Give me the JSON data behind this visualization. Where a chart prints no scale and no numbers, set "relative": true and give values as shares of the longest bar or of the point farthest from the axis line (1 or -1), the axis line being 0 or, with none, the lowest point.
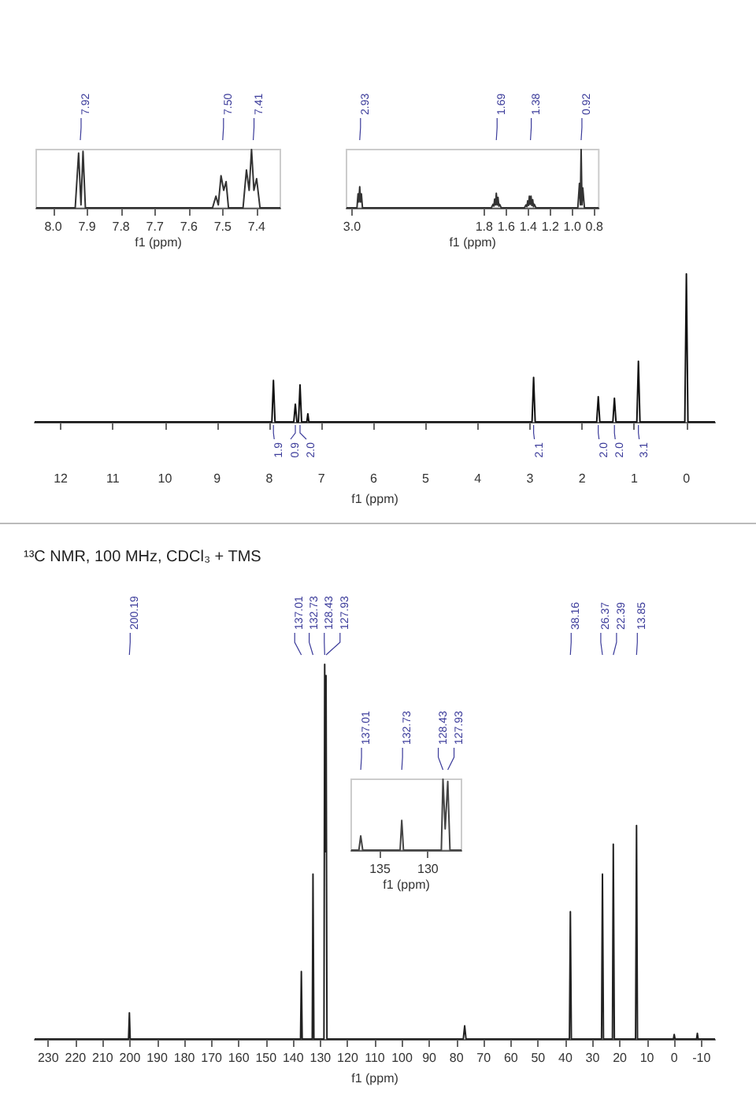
{
  "chart_data": [
    {
      "type": "line",
      "relative": true,
      "marker": "none",
      "color": "#333333",
      "xlabel": "f1 (ppm)",
      "xlim": [
        8.05,
        7.33
      ],
      "xticks": [
        {
          "value": 8,
          "label": "8.0"
        },
        {
          "value": 7.9,
          "label": "7.9"
        },
        {
          "value": 7.8,
          "label": "7.8"
        },
        {
          "value": 7.7,
          "label": "7.7"
        },
        {
          "value": 7.6,
          "label": "7.6"
        },
        {
          "value": 7.5,
          "label": "7.5"
        },
        {
          "value": 7.4,
          "label": "7.4"
        }
      ],
      "x": [
        8.05,
        7.935,
        7.925,
        7.918,
        7.912,
        7.905,
        7.53,
        7.52,
        7.513,
        7.505,
        7.497,
        7.49,
        7.483,
        7.44,
        7.43,
        7.422,
        7.415,
        7.408,
        7.4,
        7.39,
        7.33
      ],
      "values": [
        0,
        0,
        0.94,
        0.05,
        0.97,
        0,
        0,
        0.2,
        0.05,
        0.55,
        0.3,
        0.45,
        0,
        0,
        0.65,
        0.3,
        1,
        0.3,
        0.5,
        0,
        0
      ],
      "annotations": [
        {
          "text": "7.92",
          "x": 7.92
        },
        {
          "text": "7.50",
          "x": 7.5
        },
        {
          "text": "7.41",
          "x": 7.41
        }
      ]
    },
    {
      "type": "line",
      "relative": true,
      "marker": "none",
      "color": "#333333",
      "xlabel": "f1 (ppm)",
      "xlim": [
        3.05,
        0.76
      ],
      "xticks": [
        {
          "value": 3,
          "label": "3.0"
        },
        {
          "value": 1.8,
          "label": "1.8"
        },
        {
          "value": 1.6,
          "label": "1.6"
        },
        {
          "value": 1.4,
          "label": "1.4"
        },
        {
          "value": 1.2,
          "label": "1.2"
        },
        {
          "value": 1,
          "label": "1.0"
        },
        {
          "value": 0.8,
          "label": "0.8"
        }
      ],
      "x": [
        3.05,
        2.955,
        2.945,
        2.938,
        2.93,
        2.922,
        2.915,
        2.905,
        1.735,
        1.72,
        1.712,
        1.705,
        1.697,
        1.69,
        1.682,
        1.675,
        1.667,
        1.66,
        1.645,
        1.435,
        1.42,
        1.412,
        1.405,
        1.397,
        1.39,
        1.382,
        1.375,
        1.367,
        1.36,
        1.352,
        1.345,
        1.33,
        0.95,
        0.935,
        0.927,
        0.92,
        0.912,
        0.905,
        0.89,
        0.76
      ],
      "values": [
        0,
        0,
        0.24,
        0.1,
        0.36,
        0.1,
        0.24,
        0,
        0,
        0.06,
        0.03,
        0.15,
        0.05,
        0.25,
        0.05,
        0.18,
        0.03,
        0.06,
        0,
        0,
        0.05,
        0.02,
        0.12,
        0.04,
        0.2,
        0.06,
        0.2,
        0.04,
        0.14,
        0.02,
        0.06,
        0,
        0,
        0.42,
        0.05,
        1,
        0.05,
        0.34,
        0,
        0
      ],
      "annotations": [
        {
          "text": "2.93",
          "x": 2.93
        },
        {
          "text": "1.69",
          "x": 1.69
        },
        {
          "text": "1.38",
          "x": 1.38
        },
        {
          "text": "0.92",
          "x": 0.92
        }
      ]
    },
    {
      "type": "line",
      "relative": true,
      "marker": "none",
      "color": "#111111",
      "xlabel": "f1 (ppm)",
      "xlim": [
        12.5,
        -0.55
      ],
      "xticks": [
        12,
        11,
        10,
        9,
        8,
        7,
        6,
        5,
        4,
        3,
        2,
        1,
        0
      ],
      "x": [
        12.5,
        7.95,
        7.92,
        7.89,
        7.53,
        7.5,
        7.47,
        7.44,
        7.41,
        7.38,
        7.28,
        7.26,
        7.24,
        2.96,
        2.93,
        2.9,
        1.72,
        1.69,
        1.66,
        1.41,
        1.38,
        1.35,
        0.95,
        0.92,
        0.89,
        0.03,
        0,
        -0.03,
        -0.55
      ],
      "values": [
        0,
        0,
        0.28,
        0,
        0,
        0.12,
        0,
        0,
        0.25,
        0,
        0,
        0.055,
        0,
        0,
        0.3,
        0,
        0,
        0.17,
        0,
        0,
        0.16,
        0,
        0,
        0.41,
        0,
        0,
        1,
        0,
        0
      ],
      "annotations": [
        {
          "text": "1.9",
          "x": 7.92,
          "y": 0
        },
        {
          "text": "0.9",
          "x": 7.5,
          "y": 0
        },
        {
          "text": "2.0",
          "x": 7.41,
          "y": 0
        },
        {
          "text": "2.1",
          "x": 2.93,
          "y": 0
        },
        {
          "text": "2.0",
          "x": 1.69,
          "y": 0
        },
        {
          "text": "2.0",
          "x": 1.38,
          "y": 0
        },
        {
          "text": "3.1",
          "x": 0.92,
          "y": 0
        }
      ]
    },
    {
      "type": "line",
      "relative": true,
      "marker": "none",
      "color": "#222222",
      "title": "¹³C NMR, 100 MHz, CDCl₃ + TMS",
      "xlabel": "f1 (ppm)",
      "xlim": [
        235,
        -15
      ],
      "xticks": [
        230,
        220,
        210,
        200,
        190,
        180,
        170,
        160,
        150,
        140,
        130,
        120,
        110,
        100,
        90,
        80,
        70,
        60,
        50,
        40,
        30,
        20,
        10,
        0,
        -10
      ],
      "x": [
        235,
        200.5,
        200.19,
        199.9,
        137.3,
        137.01,
        136.7,
        133,
        132.73,
        132.4,
        128.7,
        128.43,
        128.18,
        127.93,
        127.6,
        77.5,
        77,
        76.5,
        38.5,
        38.16,
        37.8,
        26.7,
        26.37,
        26,
        22.7,
        22.39,
        22,
        14.2,
        13.85,
        13.5,
        0.3,
        0,
        -0.3,
        -8.2,
        -8.5,
        -8.8,
        -15
      ],
      "values": [
        0,
        0,
        0.07,
        0,
        0,
        0.18,
        0,
        0,
        0.44,
        0,
        0,
        1,
        0.5,
        0.97,
        0,
        0,
        0.035,
        0,
        0,
        0.34,
        0,
        0,
        0.44,
        0,
        0,
        0.52,
        0,
        0,
        0.57,
        0,
        0,
        0.012,
        0,
        0,
        0.015,
        0,
        0
      ],
      "annotations": [
        {
          "text": "200.19",
          "x": 200.19
        },
        {
          "text": "137.01",
          "x": 137.01
        },
        {
          "text": "132.73",
          "x": 132.73
        },
        {
          "text": "128.43",
          "x": 128.43
        },
        {
          "text": "127.93",
          "x": 127.93
        },
        {
          "text": "38.16",
          "x": 38.16
        },
        {
          "text": "26.37",
          "x": 26.37
        },
        {
          "text": "22.39",
          "x": 22.39
        },
        {
          "text": "13.85",
          "x": 13.85
        }
      ]
    },
    {
      "type": "line",
      "relative": true,
      "marker": "none",
      "color": "#444444",
      "xlabel": "f1 (ppm)",
      "xlim": [
        138,
        126.5
      ],
      "xticks": [
        135,
        130
      ],
      "x": [
        138,
        137.2,
        137.01,
        136.8,
        132.9,
        132.73,
        132.55,
        128.6,
        128.43,
        128.2,
        127.93,
        127.7,
        126.5
      ],
      "values": [
        0,
        0,
        0.2,
        0,
        0,
        0.42,
        0,
        0,
        1,
        0.3,
        0.97,
        0,
        0
      ],
      "annotations": [
        {
          "text": "137.01",
          "x": 137.01
        },
        {
          "text": "132.73",
          "x": 132.73
        },
        {
          "text": "128.43",
          "x": 128.43
        },
        {
          "text": "127.93",
          "x": 127.93
        }
      ]
    }
  ]
}
